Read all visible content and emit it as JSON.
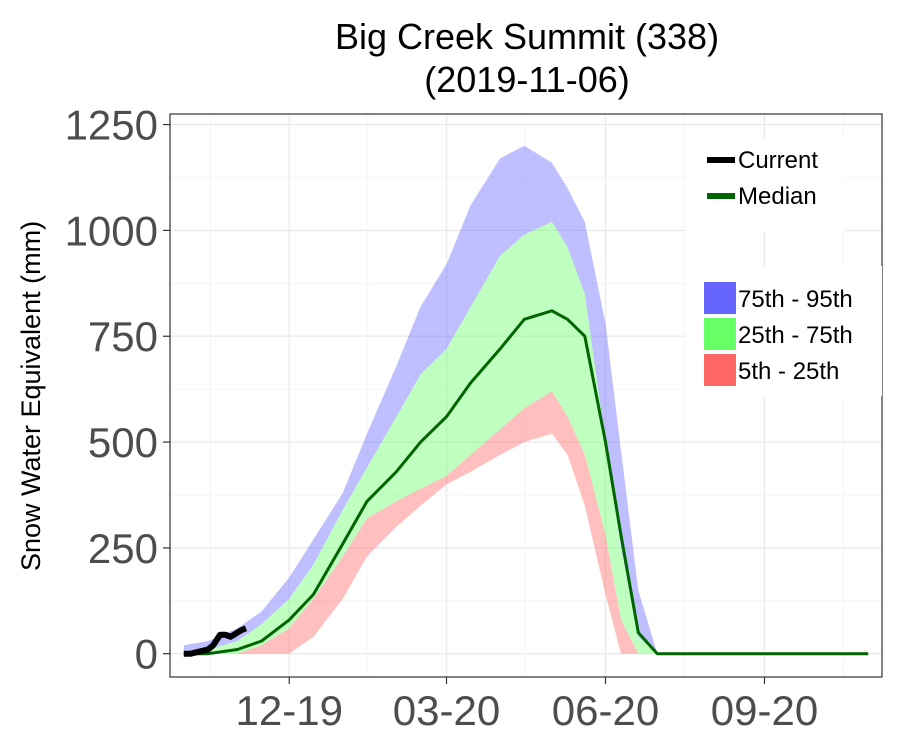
{
  "chart_data": {
    "type": "area",
    "title": "Big Creek Summit (338)",
    "subtitle": "(2019-11-06)",
    "ylabel": "Snow Water Equivalent (mm)",
    "xlabel": "",
    "x_ticks": [
      "12-19",
      "03-20",
      "06-20",
      "09-20"
    ],
    "y_ticks": [
      "0",
      "250",
      "500",
      "750",
      "1000",
      "1250"
    ],
    "x_tick_dates": [
      "2019-12-01",
      "2020-03-01",
      "2020-06-01",
      "2020-09-01"
    ],
    "ylim": [
      -55,
      1275
    ],
    "xlim": [
      "2019-09-23",
      "2020-11-08"
    ],
    "grid": true,
    "legend_position": "right",
    "legend_lines": [
      {
        "label": "Current",
        "color": "#000000"
      },
      {
        "label": "Median",
        "color": "#006400"
      }
    ],
    "legend_bands": [
      {
        "label": "75th - 95th",
        "color": "#6666ff"
      },
      {
        "label": "25th - 75th",
        "color": "#66ff66"
      },
      {
        "label": "5th - 25th",
        "color": "#ff6666"
      }
    ],
    "dates": [
      "2019-10-01",
      "2019-10-15",
      "2019-11-01",
      "2019-11-15",
      "2019-12-01",
      "2019-12-15",
      "2020-01-01",
      "2020-01-15",
      "2020-02-01",
      "2020-02-15",
      "2020-03-01",
      "2020-03-15",
      "2020-04-01",
      "2020-04-15",
      "2020-05-01",
      "2020-05-10",
      "2020-05-20",
      "2020-06-01",
      "2020-06-10",
      "2020-06-20",
      "2020-07-01",
      "2020-07-15",
      "2020-08-01",
      "2020-08-15",
      "2020-09-01",
      "2020-09-15",
      "2020-10-01",
      "2020-10-15",
      "2020-10-31"
    ],
    "series": [
      {
        "name": "95th",
        "values": [
          20,
          30,
          60,
          100,
          180,
          270,
          380,
          520,
          680,
          820,
          920,
          1060,
          1170,
          1200,
          1160,
          1100,
          1020,
          780,
          480,
          150,
          0,
          0,
          0,
          0,
          0,
          0,
          0,
          0,
          0
        ]
      },
      {
        "name": "75th",
        "values": [
          5,
          10,
          30,
          70,
          130,
          210,
          340,
          440,
          560,
          660,
          720,
          820,
          940,
          990,
          1020,
          960,
          850,
          500,
          250,
          40,
          0,
          0,
          0,
          0,
          0,
          0,
          0,
          0,
          0
        ]
      },
      {
        "name": "25th",
        "values": [
          0,
          0,
          0,
          20,
          60,
          130,
          230,
          320,
          360,
          390,
          420,
          470,
          530,
          580,
          620,
          560,
          470,
          280,
          80,
          0,
          0,
          0,
          0,
          0,
          0,
          0,
          0,
          0,
          0
        ]
      },
      {
        "name": "5th",
        "values": [
          0,
          0,
          0,
          0,
          0,
          40,
          130,
          230,
          300,
          350,
          400,
          430,
          470,
          500,
          520,
          470,
          350,
          140,
          0,
          0,
          0,
          0,
          0,
          0,
          0,
          0,
          0,
          0,
          0
        ]
      },
      {
        "name": "Median",
        "values": [
          0,
          0,
          10,
          30,
          80,
          140,
          260,
          360,
          430,
          500,
          560,
          640,
          720,
          790,
          810,
          790,
          750,
          500,
          280,
          50,
          0,
          0,
          0,
          0,
          0,
          0,
          0,
          0,
          0
        ]
      }
    ],
    "current": {
      "dates": [
        "2019-10-01",
        "2019-10-05",
        "2019-10-10",
        "2019-10-15",
        "2019-10-18",
        "2019-10-22",
        "2019-10-25",
        "2019-10-28",
        "2019-11-01",
        "2019-11-03",
        "2019-11-06"
      ],
      "values": [
        0,
        0,
        5,
        10,
        20,
        45,
        45,
        40,
        50,
        55,
        60
      ]
    }
  }
}
